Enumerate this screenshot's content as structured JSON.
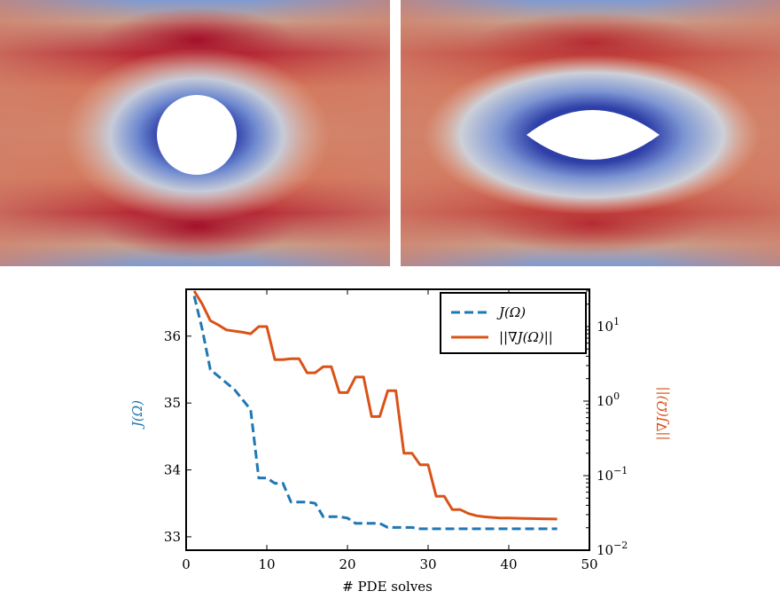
{
  "colormap": {
    "low": "#3a4cc0",
    "mid": "#dcdcdc",
    "high": "#b40426",
    "top_peak": "#a3102a",
    "obstacle": "#ffffff"
  },
  "panels": [
    {
      "name": "initial-shape",
      "obstacle": "circle"
    },
    {
      "name": "optimized-shape",
      "obstacle": "lens"
    }
  ],
  "chart_data": {
    "type": "line",
    "xlabel": "# PDE solves",
    "ylabel_left": "J(Ω)",
    "ylabel_right": "||∇J(Ω)||",
    "xlim": [
      0,
      50
    ],
    "ylim_left": [
      32.8,
      36.7
    ],
    "ylim_right_log10": [
      -2,
      1.5
    ],
    "xticks": [
      0,
      10,
      20,
      30,
      40,
      50
    ],
    "yticks_left": [
      33,
      34,
      35,
      36
    ],
    "yticks_right": [
      "10^−2",
      "10^−1",
      "10^0",
      "10^1"
    ],
    "legend_position": "top-right",
    "grid": false,
    "series": [
      {
        "name": "J(Ω)",
        "axis": "left",
        "color": "#1f77b4",
        "style": "dashed",
        "x": [
          1,
          2,
          3,
          4,
          5,
          6,
          7,
          8,
          9,
          10,
          11,
          12,
          13,
          14,
          15,
          16,
          17,
          18,
          19,
          20,
          21,
          22,
          23,
          24,
          25,
          26,
          27,
          28,
          29,
          30,
          31,
          32,
          33,
          34,
          35,
          36,
          37,
          38,
          39,
          40,
          41,
          42,
          43,
          44,
          45,
          46
        ],
        "y": [
          36.6,
          36.1,
          35.5,
          35.4,
          35.3,
          35.2,
          35.05,
          34.9,
          33.88,
          33.88,
          33.8,
          33.8,
          33.52,
          33.52,
          33.52,
          33.5,
          33.3,
          33.3,
          33.3,
          33.28,
          33.2,
          33.2,
          33.2,
          33.2,
          33.14,
          33.14,
          33.14,
          33.14,
          33.12,
          33.12,
          33.12,
          33.12,
          33.12,
          33.12,
          33.12,
          33.12,
          33.12,
          33.12,
          33.12,
          33.12,
          33.12,
          33.12,
          33.12,
          33.12,
          33.12,
          33.12
        ]
      },
      {
        "name": "||∇J(Ω)||",
        "axis": "right",
        "color": "#d95319",
        "style": "solid",
        "x": [
          1,
          2,
          3,
          4,
          5,
          6,
          7,
          8,
          9,
          10,
          11,
          12,
          13,
          14,
          15,
          16,
          17,
          18,
          19,
          20,
          21,
          22,
          23,
          24,
          25,
          26,
          27,
          28,
          29,
          30,
          31,
          32,
          33,
          34,
          35,
          36,
          37,
          38,
          39,
          40,
          41,
          42,
          43,
          44,
          45,
          46
        ],
        "y": [
          30,
          20,
          12,
          10.5,
          9,
          8.7,
          8.4,
          8,
          10,
          10,
          3.6,
          3.6,
          3.7,
          3.7,
          2.4,
          2.4,
          2.9,
          2.9,
          1.3,
          1.3,
          2.1,
          2.1,
          0.62,
          0.62,
          1.38,
          1.38,
          0.2,
          0.2,
          0.14,
          0.14,
          0.053,
          0.053,
          0.035,
          0.035,
          0.031,
          0.029,
          0.028,
          0.0275,
          0.027,
          0.027,
          0.0268,
          0.0266,
          0.0265,
          0.0264,
          0.0263,
          0.0262
        ]
      }
    ]
  }
}
